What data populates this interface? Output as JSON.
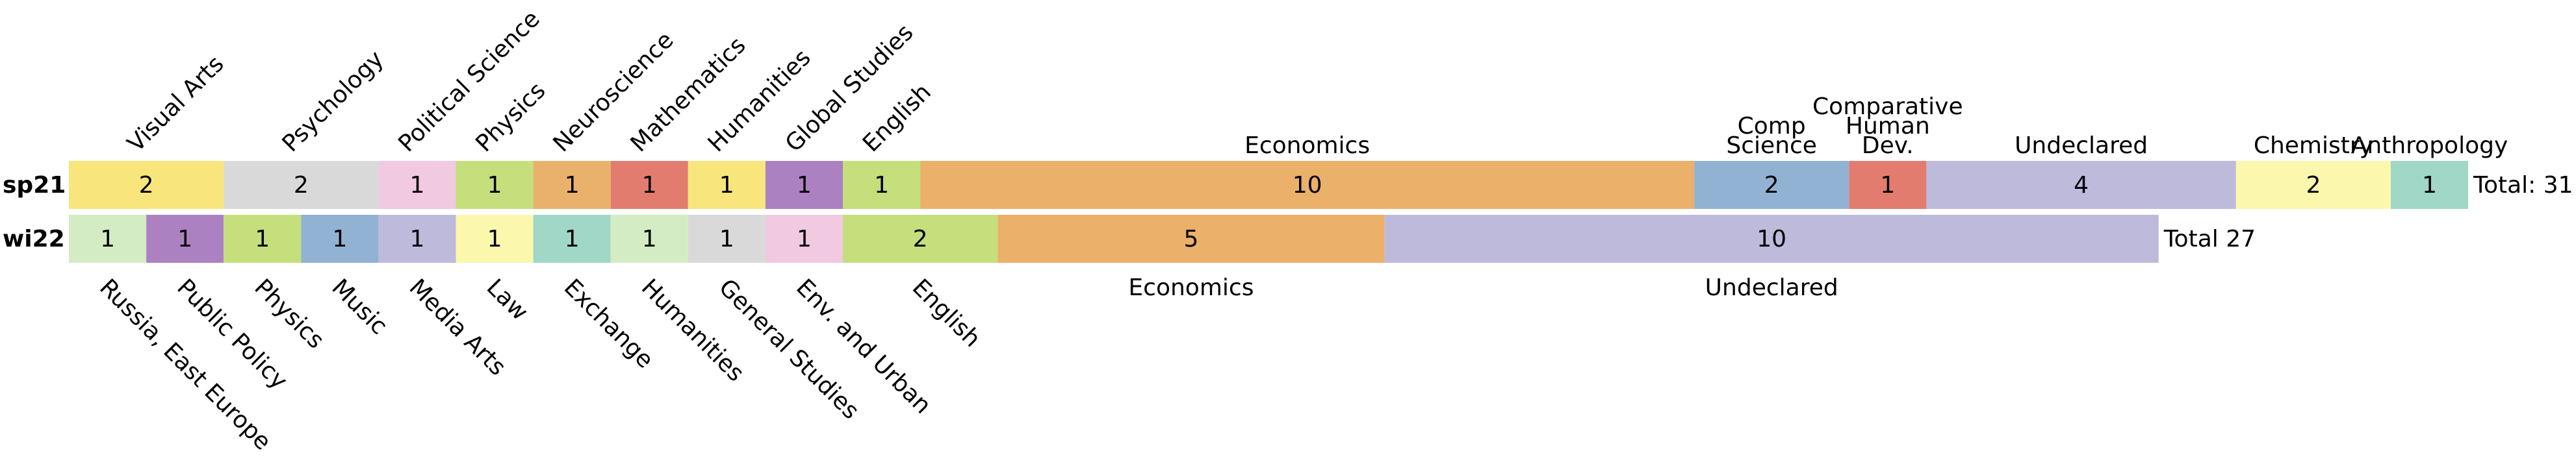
{
  "chart_data": {
    "type": "stacked-bar",
    "rows": [
      {
        "label": "sp21",
        "total": {
          "value": 31,
          "label": "Total: 31"
        },
        "segments": [
          {
            "name": "Visual Arts",
            "value": 2,
            "color": "#f8e67c"
          },
          {
            "name": "Psychology",
            "value": 2,
            "color": "#d9d9d9"
          },
          {
            "name": "Political Science",
            "value": 1,
            "color": "#f1c9e1"
          },
          {
            "name": "Physics",
            "value": 1,
            "color": "#c4df7b"
          },
          {
            "name": "Neuroscience",
            "value": 1,
            "color": "#eab16c"
          },
          {
            "name": "Mathematics",
            "value": 1,
            "color": "#e27c6f"
          },
          {
            "name": "Humanities",
            "value": 1,
            "color": "#f8e67c"
          },
          {
            "name": "Global Studies",
            "value": 1,
            "color": "#ac81c1"
          },
          {
            "name": "English",
            "value": 1,
            "color": "#c4df7b"
          },
          {
            "name": "Economics",
            "value": 10,
            "color": "#ebb06a"
          },
          {
            "name": "Comp Science",
            "value": 2,
            "color": "#92b2d4"
          },
          {
            "name": "Comparative Human Dev.",
            "value": 1,
            "color": "#e27c6f"
          },
          {
            "name": "Undeclared",
            "value": 4,
            "color": "#bdbadb"
          },
          {
            "name": "Chemistry",
            "value": 2,
            "color": "#fbf8ae"
          },
          {
            "name": "Anthropology",
            "value": 1,
            "color": "#a0d7c7"
          }
        ]
      },
      {
        "label": "wi22",
        "total": {
          "value": 27,
          "label": "Total 27"
        },
        "segments": [
          {
            "name": "Russia, East Europe",
            "value": 1,
            "color": "#d4ecc3"
          },
          {
            "name": "Public Policy",
            "value": 1,
            "color": "#ac81c1"
          },
          {
            "name": "Physics",
            "value": 1,
            "color": "#c4df7b"
          },
          {
            "name": "Music",
            "value": 1,
            "color": "#92b2d4"
          },
          {
            "name": "Media Arts",
            "value": 1,
            "color": "#bdbadb"
          },
          {
            "name": "Law",
            "value": 1,
            "color": "#fbf8ae"
          },
          {
            "name": "Exchange",
            "value": 1,
            "color": "#a0d7c7"
          },
          {
            "name": "Humanities",
            "value": 1,
            "color": "#d4ecc3"
          },
          {
            "name": "General Studies",
            "value": 1,
            "color": "#d9d9d9"
          },
          {
            "name": "Env. and Urban",
            "value": 1,
            "color": "#f1c9e1"
          },
          {
            "name": "English",
            "value": 2,
            "color": "#c4df7b"
          },
          {
            "name": "Economics",
            "value": 5,
            "color": "#ebb06a"
          },
          {
            "name": "Undeclared",
            "value": 10,
            "color": "#bdbadb"
          }
        ]
      }
    ]
  }
}
